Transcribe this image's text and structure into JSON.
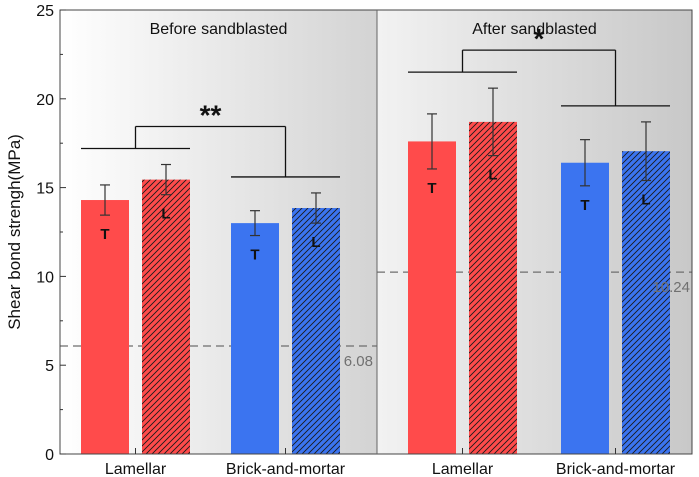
{
  "chart_data": {
    "type": "bar",
    "ylabel": "Shear bond strengh(MPa)",
    "ylim": [
      0,
      25
    ],
    "yticks": [
      "0",
      "5",
      "10",
      "15",
      "20",
      "25"
    ],
    "series_colors": {
      "Lamellar": "#ff4b4b",
      "Brick-and-mortar": "#3b74f0"
    },
    "panels": [
      {
        "label": "Before sandblasted",
        "reference": {
          "value": 6.08,
          "label": "6.08"
        },
        "groups": [
          {
            "name": "Lamellar",
            "color": "#ff4b4b",
            "bars": [
              {
                "letter": "T",
                "value": 14.3,
                "err": 0.85,
                "hatched": false
              },
              {
                "letter": "L",
                "value": 15.45,
                "err": 0.85,
                "hatched": true
              }
            ]
          },
          {
            "name": "Brick-and-mortar",
            "color": "#3b74f0",
            "bars": [
              {
                "letter": "T",
                "value": 13.0,
                "err": 0.7,
                "hatched": false
              },
              {
                "letter": "L",
                "value": 13.85,
                "err": 0.85,
                "hatched": true
              }
            ]
          }
        ],
        "significance": "**"
      },
      {
        "label": "After sandblasted",
        "reference": {
          "value": 10.24,
          "label": "10.24"
        },
        "groups": [
          {
            "name": "Lamellar",
            "color": "#ff4b4b",
            "bars": [
              {
                "letter": "T",
                "value": 17.6,
                "err": 1.55,
                "hatched": false
              },
              {
                "letter": "L",
                "value": 18.7,
                "err": 1.9,
                "hatched": true
              }
            ]
          },
          {
            "name": "Brick-and-mortar",
            "color": "#3b74f0",
            "bars": [
              {
                "letter": "T",
                "value": 16.4,
                "err": 1.3,
                "hatched": false
              },
              {
                "letter": "L",
                "value": 17.05,
                "err": 1.65,
                "hatched": true
              }
            ]
          }
        ],
        "significance": "*"
      }
    ]
  }
}
